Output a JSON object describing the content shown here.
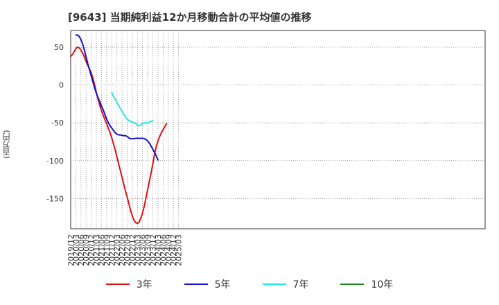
{
  "chart_data": {
    "type": "line",
    "title": "[9643]  当期純利益12か月移動合計の平均値の推移",
    "xlabel": "",
    "ylabel": "(百万円)",
    "ylim": [
      -190,
      72
    ],
    "yticks": [
      50,
      0,
      -50,
      -100,
      -150
    ],
    "x_ticks": [
      "2019/12",
      "2020/03",
      "2020/06",
      "2020/09",
      "2020/12",
      "2021/03",
      "2021/06",
      "2021/09",
      "2021/12",
      "2022/03",
      "2022/06",
      "2022/09",
      "2022/12",
      "2023/03",
      "2023/06",
      "2023/09",
      "2023/12",
      "2024/03",
      "2024/06",
      "2024/09",
      "2024/12",
      "2025/03"
    ],
    "grid": true,
    "legend_position": "bottom",
    "series": [
      {
        "name": "3年",
        "color": "#dd1111",
        "points": [
          [
            "2019/12",
            38
          ],
          [
            "2020/01",
            40
          ],
          [
            "2020/02",
            44
          ],
          [
            "2020/03",
            48
          ],
          [
            "2020/04",
            50
          ],
          [
            "2020/05",
            49
          ],
          [
            "2020/06",
            46
          ],
          [
            "2020/07",
            42
          ],
          [
            "2020/08",
            37
          ],
          [
            "2020/09",
            31
          ],
          [
            "2020/10",
            26
          ],
          [
            "2020/11",
            21
          ],
          [
            "2020/12",
            16
          ],
          [
            "2021/01",
            9
          ],
          [
            "2021/02",
            0
          ],
          [
            "2021/03",
            -10
          ],
          [
            "2021/04",
            -19
          ],
          [
            "2021/05",
            -27
          ],
          [
            "2021/06",
            -34
          ],
          [
            "2021/07",
            -40
          ],
          [
            "2021/08",
            -46
          ],
          [
            "2021/09",
            -51
          ],
          [
            "2021/10",
            -57
          ],
          [
            "2021/11",
            -63
          ],
          [
            "2021/12",
            -70
          ],
          [
            "2022/01",
            -78
          ],
          [
            "2022/02",
            -86
          ],
          [
            "2022/03",
            -95
          ],
          [
            "2022/04",
            -104
          ],
          [
            "2022/05",
            -113
          ],
          [
            "2022/06",
            -122
          ],
          [
            "2022/07",
            -131
          ],
          [
            "2022/08",
            -140
          ],
          [
            "2022/09",
            -148
          ],
          [
            "2022/10",
            -157
          ],
          [
            "2022/11",
            -166
          ],
          [
            "2022/12",
            -173
          ],
          [
            "2023/01",
            -179
          ],
          [
            "2023/02",
            -182
          ],
          [
            "2023/03",
            -183
          ],
          [
            "2023/04",
            -181
          ],
          [
            "2023/05",
            -176
          ],
          [
            "2023/06",
            -169
          ],
          [
            "2023/07",
            -160
          ],
          [
            "2023/08",
            -149
          ],
          [
            "2023/09",
            -138
          ],
          [
            "2023/10",
            -127
          ],
          [
            "2023/11",
            -116
          ],
          [
            "2023/12",
            -104
          ],
          [
            "2024/01",
            -91
          ],
          [
            "2024/02",
            -81
          ],
          [
            "2024/03",
            -74
          ],
          [
            "2024/04",
            -68
          ],
          [
            "2024/05",
            -63
          ],
          [
            "2024/06",
            -59
          ],
          [
            "2024/07",
            -55
          ],
          [
            "2024/08",
            -51
          ]
        ]
      },
      {
        "name": "5年",
        "color": "#1111cc",
        "points": [
          [
            "2020/03",
            66
          ],
          [
            "2020/04",
            66
          ],
          [
            "2020/05",
            64
          ],
          [
            "2020/06",
            60
          ],
          [
            "2020/07",
            54
          ],
          [
            "2020/08",
            46
          ],
          [
            "2020/09",
            37
          ],
          [
            "2020/10",
            28
          ],
          [
            "2020/11",
            20
          ],
          [
            "2020/12",
            12
          ],
          [
            "2021/01",
            4
          ],
          [
            "2021/02",
            -4
          ],
          [
            "2021/03",
            -11
          ],
          [
            "2021/04",
            -17
          ],
          [
            "2021/05",
            -22
          ],
          [
            "2021/06",
            -28
          ],
          [
            "2021/07",
            -33
          ],
          [
            "2021/08",
            -39
          ],
          [
            "2021/09",
            -45
          ],
          [
            "2021/10",
            -50
          ],
          [
            "2021/11",
            -54
          ],
          [
            "2021/12",
            -57
          ],
          [
            "2022/01",
            -60
          ],
          [
            "2022/02",
            -63
          ],
          [
            "2022/03",
            -65
          ],
          [
            "2022/04",
            -66
          ],
          [
            "2022/05",
            -66
          ],
          [
            "2022/06",
            -66.5
          ],
          [
            "2022/07",
            -67
          ],
          [
            "2022/08",
            -67
          ],
          [
            "2022/09",
            -68
          ],
          [
            "2022/10",
            -70
          ],
          [
            "2022/11",
            -71
          ],
          [
            "2022/12",
            -71
          ],
          [
            "2023/01",
            -71
          ],
          [
            "2023/02",
            -70.5
          ],
          [
            "2023/03",
            -70.5
          ],
          [
            "2023/04",
            -70.5
          ],
          [
            "2023/05",
            -70.5
          ],
          [
            "2023/06",
            -70.5
          ],
          [
            "2023/07",
            -71
          ],
          [
            "2023/08",
            -72
          ],
          [
            "2023/09",
            -74
          ],
          [
            "2023/10",
            -77
          ],
          [
            "2023/11",
            -81
          ],
          [
            "2023/12",
            -85
          ],
          [
            "2024/01",
            -89
          ],
          [
            "2024/02",
            -94
          ],
          [
            "2024/03",
            -99
          ]
        ]
      },
      {
        "name": "7年",
        "color": "#22e5e5",
        "points": [
          [
            "2021/12",
            -10
          ],
          [
            "2022/01",
            -15
          ],
          [
            "2022/02",
            -19
          ],
          [
            "2022/03",
            -23
          ],
          [
            "2022/04",
            -27
          ],
          [
            "2022/05",
            -31
          ],
          [
            "2022/06",
            -35
          ],
          [
            "2022/07",
            -39
          ],
          [
            "2022/08",
            -42
          ],
          [
            "2022/09",
            -45
          ],
          [
            "2022/10",
            -47
          ],
          [
            "2022/11",
            -48
          ],
          [
            "2022/12",
            -49
          ],
          [
            "2023/01",
            -50
          ],
          [
            "2023/02",
            -51
          ],
          [
            "2023/03",
            -53
          ],
          [
            "2023/04",
            -54
          ],
          [
            "2023/05",
            -53
          ],
          [
            "2023/06",
            -51
          ],
          [
            "2023/07",
            -50
          ],
          [
            "2023/08",
            -50
          ],
          [
            "2023/09",
            -50
          ],
          [
            "2023/10",
            -49
          ],
          [
            "2023/11",
            -48
          ],
          [
            "2023/12",
            -47
          ]
        ]
      },
      {
        "name": "10年",
        "color": "#228822",
        "points": []
      }
    ]
  }
}
